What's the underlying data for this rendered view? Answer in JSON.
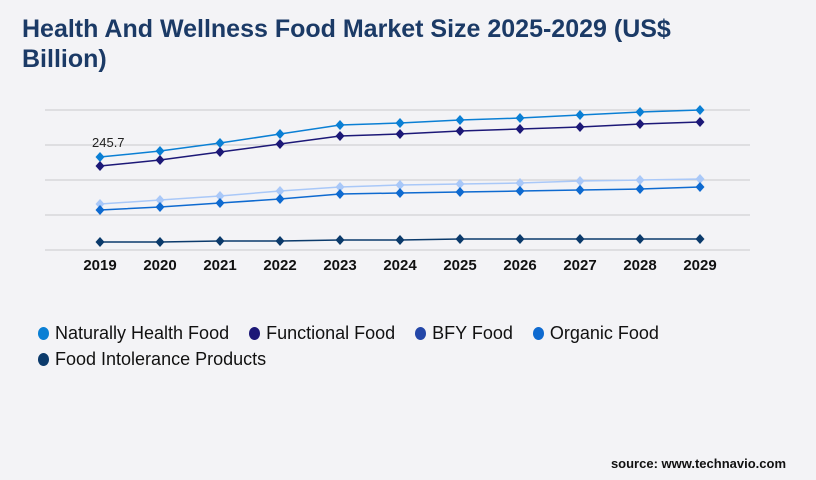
{
  "title": "Health And Wellness Food Market Size 2025-2029 (US$ Billion)",
  "source": "source: www.technavio.com",
  "chart_data": {
    "type": "line",
    "title": "Health And Wellness Food Market Size 2025-2029 (US$ Billion)",
    "categories": [
      "2019",
      "2020",
      "2021",
      "2022",
      "2023",
      "2024",
      "2025",
      "2026",
      "2027",
      "2028",
      "2029"
    ],
    "ylim": [
      0,
      370
    ],
    "grid": true,
    "legend_placement": "bottom",
    "annotations": [
      {
        "series": 0,
        "index": 0,
        "label": "245.7"
      }
    ],
    "series": [
      {
        "name": "Naturally Health Food",
        "color": "#0a7fd4",
        "legend_color": "#0a7fd4",
        "values": [
          245.7,
          261.6,
          282.7,
          306.5,
          330.3,
          335.5,
          343.5,
          348.7,
          356.7,
          364.6,
          369.9
        ]
      },
      {
        "name": "Functional Food",
        "color": "#1c1877",
        "legend_color": "#1c1877",
        "values": [
          221.9,
          237.8,
          258.9,
          280.1,
          301.2,
          306.5,
          314.4,
          319.7,
          325.0,
          332.9,
          338.2
        ]
      },
      {
        "name": "BFY Food",
        "color": "#a9c8f8",
        "legend_color": "#2346a8",
        "values": [
          121.5,
          132.1,
          142.7,
          155.9,
          166.4,
          171.7,
          174.4,
          177.0,
          182.3,
          184.9,
          187.6
        ]
      },
      {
        "name": "Organic Food",
        "color": "#0e6ad0",
        "legend_color": "#0e6ad0",
        "values": [
          105.7,
          113.6,
          124.2,
          134.7,
          148.0,
          150.6,
          153.2,
          155.9,
          158.5,
          161.2,
          166.4
        ]
      },
      {
        "name": "Food Intolerance Products",
        "color": "#0b3a6b",
        "legend_color": "#0b3a6b",
        "values": [
          21.1,
          21.1,
          23.8,
          23.8,
          26.4,
          26.4,
          29.1,
          29.1,
          29.1,
          29.1,
          29.1
        ]
      }
    ]
  }
}
